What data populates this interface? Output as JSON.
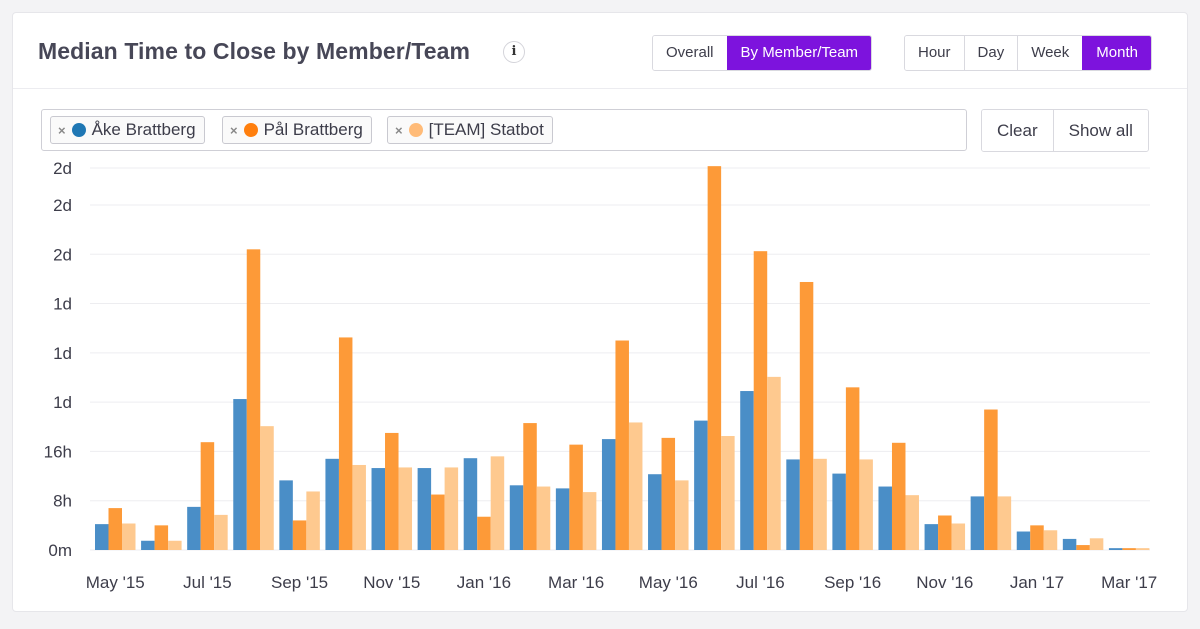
{
  "header": {
    "title": "Median Time to Close by Member/Team",
    "info_icon_glyph": "i"
  },
  "view_toggle": [
    {
      "label": "Overall",
      "active": false
    },
    {
      "label": "By Member/Team",
      "active": true
    }
  ],
  "period_toggle": [
    {
      "label": "Hour",
      "active": false
    },
    {
      "label": "Day",
      "active": false
    },
    {
      "label": "Week",
      "active": false
    },
    {
      "label": "Month",
      "active": true
    }
  ],
  "filter": {
    "remove_glyph": "×",
    "tags": [
      {
        "label": "Åke Brattberg",
        "color": "#1f77b4"
      },
      {
        "label": "Pål Brattberg",
        "color": "#ff7f0e"
      },
      {
        "label": "[TEAM] Statbot",
        "color": "#ffbb78"
      }
    ],
    "clear_label": "Clear",
    "show_all_label": "Show all"
  },
  "colors": {
    "accent": "#7d13dd",
    "series": [
      "#4a8ec7",
      "#fd9a38",
      "#fec98f"
    ]
  },
  "chart_data": {
    "type": "bar",
    "title": "Median Time to Close by Member/Team",
    "unit": "hours",
    "ylim": [
      0,
      62
    ],
    "y_ticks": [
      {
        "value": 0,
        "label": "0m"
      },
      {
        "value": 8,
        "label": "8h"
      },
      {
        "value": 16,
        "label": "16h"
      },
      {
        "value": 24,
        "label": "1d"
      },
      {
        "value": 32,
        "label": "1d"
      },
      {
        "value": 40,
        "label": "1d"
      },
      {
        "value": 48,
        "label": "2d"
      },
      {
        "value": 56,
        "label": "2d"
      },
      {
        "value": 62,
        "label": "2d"
      }
    ],
    "grid": true,
    "categories": [
      "May '15",
      "Jun '15",
      "Jul '15",
      "Aug '15",
      "Sep '15",
      "Oct '15",
      "Nov '15",
      "Dec '15",
      "Jan '16",
      "Feb '16",
      "Mar '16",
      "Apr '16",
      "May '16",
      "Jun '16",
      "Jul '16",
      "Aug '16",
      "Sep '16",
      "Oct '16",
      "Nov '16",
      "Dec '16",
      "Jan '17",
      "Feb '17",
      "Mar '17"
    ],
    "x_tick_labels": [
      "May '15",
      "Jul '15",
      "Sep '15",
      "Nov '15",
      "Jan '16",
      "Mar '16",
      "May '16",
      "Jul '16",
      "Sep '16",
      "Nov '16",
      "Jan '17",
      "Mar '17"
    ],
    "series": [
      {
        "name": "Åke Brattberg",
        "values": [
          4.2,
          1.5,
          7.0,
          24.5,
          11.3,
          14.8,
          13.3,
          13.3,
          14.9,
          10.5,
          10.0,
          18.0,
          12.3,
          21.0,
          25.8,
          14.7,
          12.4,
          10.3,
          4.2,
          8.7,
          3.0,
          1.8,
          0.3
        ]
      },
      {
        "name": "Pål Brattberg",
        "values": [
          6.8,
          4.0,
          17.5,
          48.8,
          4.8,
          34.5,
          19.0,
          9.0,
          5.4,
          20.6,
          17.1,
          34.0,
          18.2,
          62.3,
          48.5,
          43.5,
          26.4,
          17.4,
          5.6,
          22.8,
          4.0,
          0.8,
          0.3
        ]
      },
      {
        "name": "[TEAM] Statbot",
        "values": [
          4.3,
          1.5,
          5.7,
          20.1,
          9.5,
          13.8,
          13.4,
          13.4,
          15.2,
          10.3,
          9.4,
          20.7,
          11.3,
          18.5,
          28.1,
          14.8,
          14.7,
          8.9,
          4.3,
          8.7,
          3.2,
          1.9,
          0.3
        ]
      }
    ]
  }
}
